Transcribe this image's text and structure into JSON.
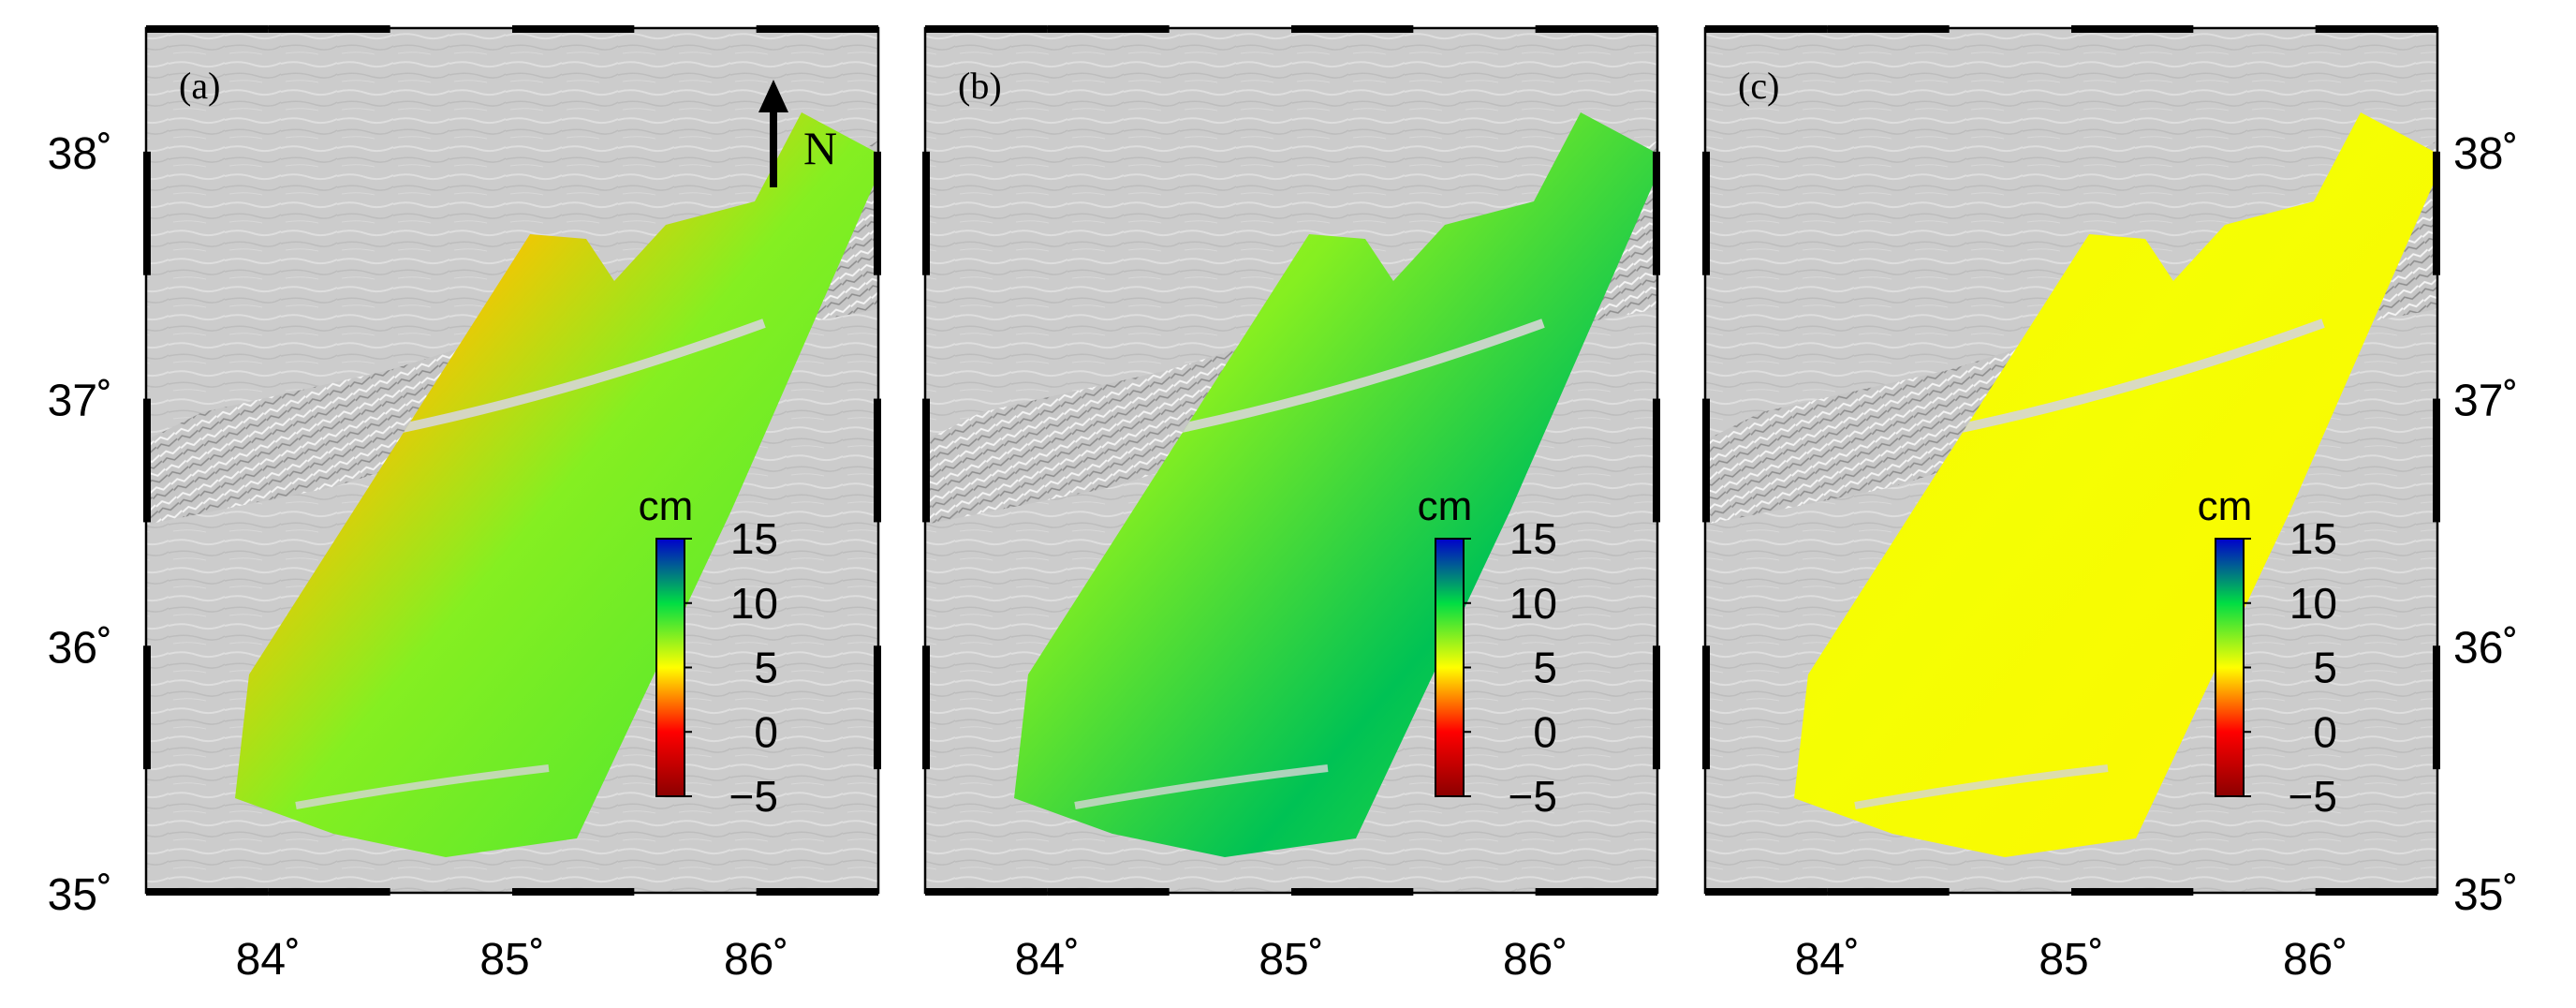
{
  "figure": {
    "panels": [
      {
        "id": "a",
        "label": "(a)",
        "deform": {
          "north": 0.25,
          "south": 0.62,
          "gradient": "ref"
        }
      },
      {
        "id": "b",
        "label": "(b)",
        "deform": {
          "north": 0.55,
          "south": 0.7,
          "gradient": "eastBlue"
        }
      },
      {
        "id": "c",
        "label": "(c)",
        "deform": {
          "north": 0.57,
          "south": 0.6,
          "gradient": "flat"
        }
      }
    ],
    "x_ticks": [
      "84˚",
      "85˚",
      "86˚"
    ],
    "y_ticks": [
      "38˚",
      "37˚",
      "36˚",
      "35˚"
    ],
    "x_tick_values": [
      84,
      85,
      86
    ],
    "y_tick_values": [
      38,
      37,
      36,
      35
    ],
    "lon_range": [
      83.5,
      86.5
    ],
    "lat_range": [
      35,
      38.5
    ],
    "colorbar": {
      "unit": "cm",
      "ticks": [
        "15",
        "10",
        "5",
        "0",
        "−5"
      ],
      "tick_values": [
        15,
        10,
        5,
        0,
        -5
      ],
      "range": [
        -5,
        15
      ],
      "colors": [
        "#8b0000",
        "#ff0000",
        "#ffff00",
        "#00dd44",
        "#0000cc"
      ]
    },
    "north_arrow": {
      "label": "N"
    },
    "colors": {
      "hillshade": "#cfcfcf",
      "frame": "#000000"
    }
  }
}
